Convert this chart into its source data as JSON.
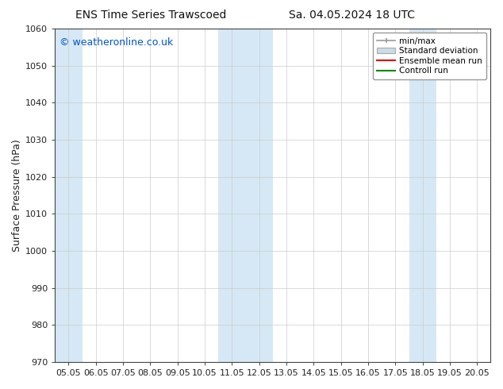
{
  "title_left": "ENS Time Series Trawscoed",
  "title_right": "Sa. 04.05.2024 18 UTC",
  "xlabel": "",
  "ylabel": "Surface Pressure (hPa)",
  "ylim": [
    970,
    1060
  ],
  "yticks": [
    970,
    980,
    990,
    1000,
    1010,
    1020,
    1030,
    1040,
    1050,
    1060
  ],
  "xtick_labels": [
    "05.05",
    "06.05",
    "07.05",
    "08.05",
    "09.05",
    "10.05",
    "11.05",
    "12.05",
    "13.05",
    "14.05",
    "15.05",
    "16.05",
    "17.05",
    "18.05",
    "19.05",
    "20.05"
  ],
  "shaded_regions": [
    {
      "xstart": 0,
      "xend": 1,
      "color": "#d6e8f5"
    },
    {
      "xstart": 6,
      "xend": 8,
      "color": "#d6e8f5"
    },
    {
      "xstart": 13,
      "xend": 14,
      "color": "#d6e8f5"
    }
  ],
  "watermark": "© weatheronline.co.uk",
  "watermark_color": "#0055cc",
  "legend_items": [
    {
      "label": "min/max",
      "color": "#aaaaaa",
      "lw": 1.2
    },
    {
      "label": "Standard deviation",
      "facecolor": "#c8dde8",
      "edgecolor": "#aaaaaa"
    },
    {
      "label": "Ensemble mean run",
      "color": "#dd0000",
      "lw": 1.5
    },
    {
      "label": "Controll run",
      "color": "#008800",
      "lw": 1.5
    }
  ],
  "background_color": "#ffffff",
  "plot_bg_color": "#ffffff",
  "spine_color": "#444444",
  "tick_color": "#444444",
  "title_fontsize": 10,
  "label_fontsize": 9,
  "tick_fontsize": 8,
  "watermark_fontsize": 9
}
